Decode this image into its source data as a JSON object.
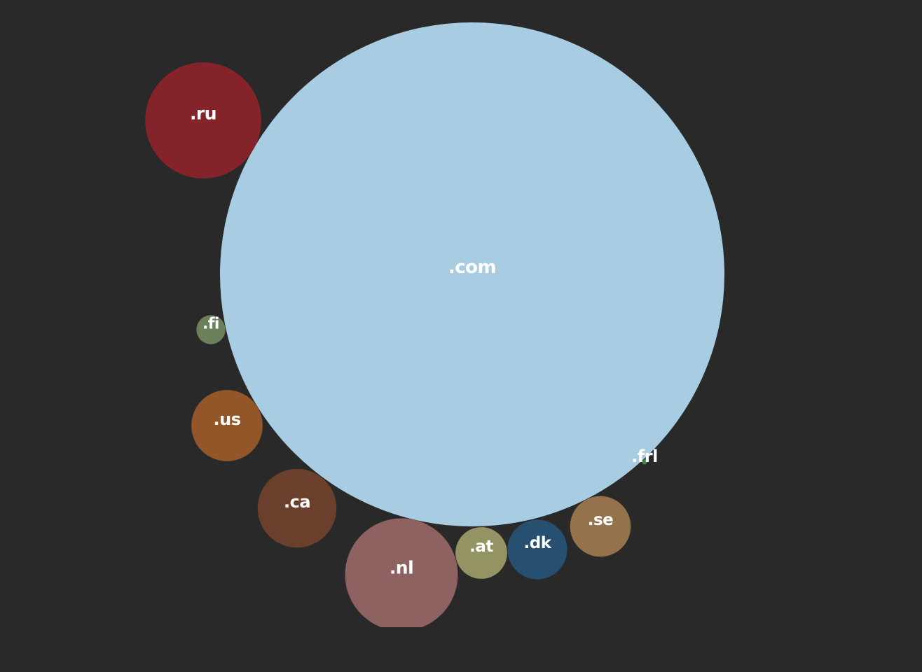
{
  "chart_data": {
    "type": "bubble",
    "title": "",
    "legend": "none",
    "grid": false,
    "background": "#292929",
    "label_color": "#ffffff",
    "bubbles": [
      {
        "label": ".com",
        "value": 100,
        "color": "#a8cde3"
      },
      {
        "label": ".ru",
        "value": 5.3,
        "color": "#84242a"
      },
      {
        "label": ".nl",
        "value": 5.0,
        "color": "#8f6262"
      },
      {
        "label": ".ca",
        "value": 2.45,
        "color": "#6a3f2b"
      },
      {
        "label": ".us",
        "value": 2.0,
        "color": "#925628"
      },
      {
        "label": ".se",
        "value": 1.45,
        "color": "#94734c"
      },
      {
        "label": ".dk",
        "value": 1.4,
        "color": "#274f70"
      },
      {
        "label": ".at",
        "value": 1.05,
        "color": "#939364"
      },
      {
        "label": ".fi",
        "value": 0.33,
        "color": "#6c805b"
      },
      {
        "label": ".frl",
        "value": 0.01,
        "color": "#3d8a4a"
      }
    ]
  }
}
